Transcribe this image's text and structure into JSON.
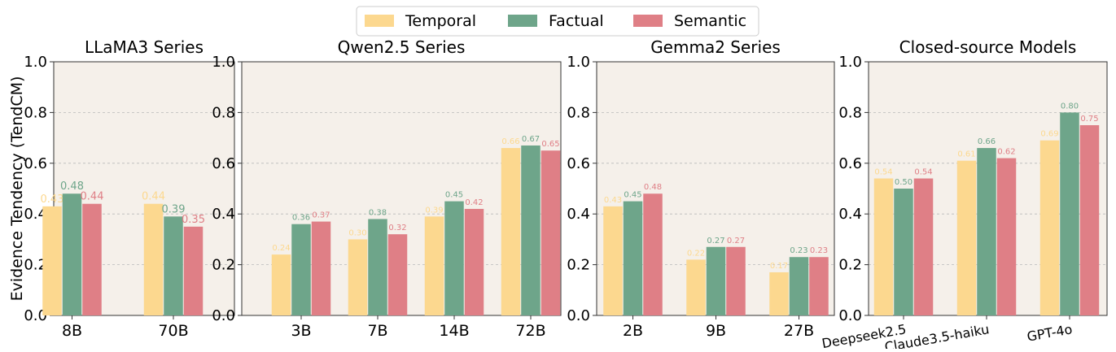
{
  "legend": [
    {
      "name": "Temporal",
      "color": "#fcd88f"
    },
    {
      "name": "Factual",
      "color": "#6ea58a"
    },
    {
      "name": "Semantic",
      "color": "#df7f86"
    }
  ],
  "ylabel": "Evidence Tendency (TendCM)",
  "yticks": [
    "0.0",
    "0.2",
    "0.4",
    "0.6",
    "0.8",
    "1.0"
  ],
  "colors": {
    "panel_bg": "#f5f0ea",
    "grid": "#b9b9b9",
    "axis": "#333333"
  },
  "chart_data": [
    {
      "type": "bar",
      "title": "LLaMA3 Series",
      "categories": [
        "8B",
        "70B"
      ],
      "ylim": [
        0,
        1
      ],
      "grid": true,
      "series": [
        {
          "name": "Temporal",
          "values": [
            0.43,
            0.44
          ],
          "labels": [
            "0.43",
            "0.44"
          ]
        },
        {
          "name": "Factual",
          "values": [
            0.48,
            0.39
          ],
          "labels": [
            "0.48",
            "0.39"
          ]
        },
        {
          "name": "Semantic",
          "values": [
            0.44,
            0.35
          ],
          "labels": [
            "0.44",
            "0.35"
          ]
        }
      ]
    },
    {
      "type": "bar",
      "title": "Qwen2.5 Series",
      "categories": [
        "3B",
        "7B",
        "14B",
        "72B"
      ],
      "ylim": [
        0,
        1
      ],
      "grid": true,
      "series": [
        {
          "name": "Temporal",
          "values": [
            0.24,
            0.3,
            0.39,
            0.66
          ],
          "labels": [
            "0.24",
            "0.30",
            "0.39",
            "0.66"
          ]
        },
        {
          "name": "Factual",
          "values": [
            0.36,
            0.38,
            0.45,
            0.67
          ],
          "labels": [
            "0.36",
            "0.38",
            "0.45",
            "0.67"
          ]
        },
        {
          "name": "Semantic",
          "values": [
            0.37,
            0.32,
            0.42,
            0.65
          ],
          "labels": [
            "0.37",
            "0.32",
            "0.42",
            "0.65"
          ]
        }
      ]
    },
    {
      "type": "bar",
      "title": "Gemma2 Series",
      "categories": [
        "2B",
        "9B",
        "27B"
      ],
      "ylim": [
        0,
        1
      ],
      "grid": true,
      "series": [
        {
          "name": "Temporal",
          "values": [
            0.43,
            0.22,
            0.17
          ],
          "labels": [
            "0.43",
            "0.22",
            "0.17"
          ]
        },
        {
          "name": "Factual",
          "values": [
            0.45,
            0.27,
            0.23
          ],
          "labels": [
            "0.45",
            "0.27",
            "0.23"
          ]
        },
        {
          "name": "Semantic",
          "values": [
            0.48,
            0.27,
            0.23
          ],
          "labels": [
            "0.48",
            "0.27",
            "0.23"
          ]
        }
      ]
    },
    {
      "type": "bar",
      "title": "Closed-source Models",
      "categories": [
        "Deepseek2.5",
        "Claude3.5-haiku",
        "GPT-4o"
      ],
      "ylim": [
        0,
        1
      ],
      "grid": true,
      "series": [
        {
          "name": "Temporal",
          "values": [
            0.54,
            0.61,
            0.69
          ],
          "labels": [
            "0.54",
            "0.61",
            "0.69"
          ]
        },
        {
          "name": "Factual",
          "values": [
            0.5,
            0.66,
            0.8
          ],
          "labels": [
            "0.50",
            "0.66",
            "0.80"
          ]
        },
        {
          "name": "Semantic",
          "values": [
            0.54,
            0.62,
            0.75
          ],
          "labels": [
            "0.54",
            "0.62",
            "0.75"
          ]
        }
      ]
    }
  ]
}
